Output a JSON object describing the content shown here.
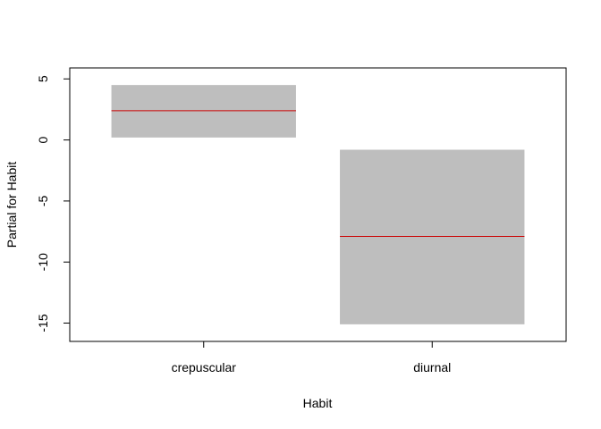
{
  "chart_data": {
    "type": "bar",
    "title": "",
    "xlabel": "Habit",
    "ylabel": "Partial for Habit",
    "categories": [
      "crepuscular",
      "diurnal"
    ],
    "estimate": [
      2.4,
      -7.9
    ],
    "lower": [
      0.2,
      -15.1
    ],
    "upper": [
      4.5,
      -0.8
    ],
    "yticks": [
      5,
      0,
      -5,
      -10,
      -15
    ],
    "ytick_labels": [
      "5",
      "0",
      "-5",
      "-10",
      "-15"
    ],
    "ylim": [
      -16.5,
      5.9
    ],
    "grid": false,
    "colors": {
      "band": "#bebebe",
      "estimate_line": "#cc0000",
      "axis": "#000000"
    }
  }
}
